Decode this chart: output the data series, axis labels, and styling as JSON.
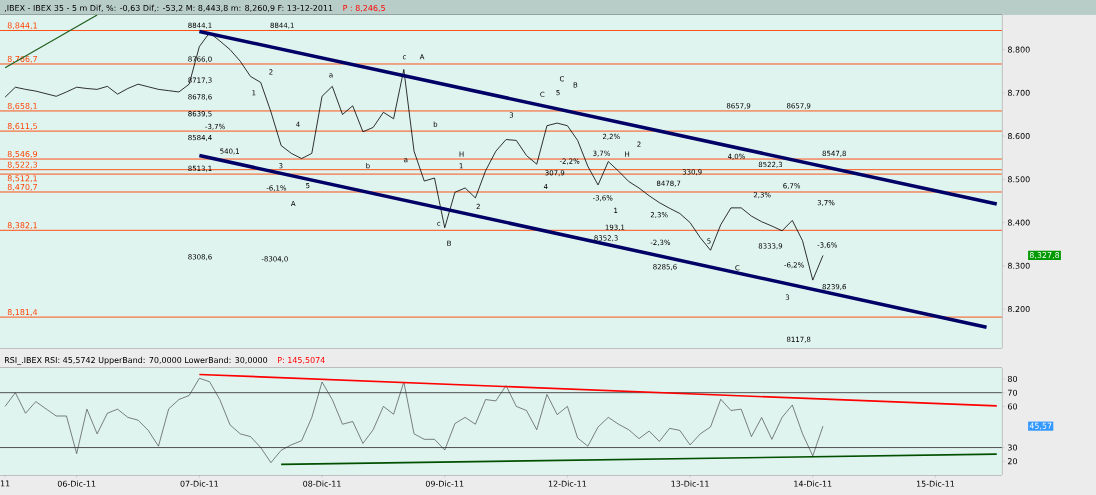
{
  "chart_data": [
    {
      "type": "line",
      "title": ",IBEX - IBEX 35 -  5 m Dif, %: -0,63 Dif,: -53,2 M: 8,443,8 m: 8,260,9 F: 13-12-2011",
      "subtitle": "P : 8,246,5",
      "categories": [
        null,
        null,
        null,
        null,
        null,
        null,
        null,
        null,
        null,
        null,
        null,
        null,
        null,
        null,
        null,
        null,
        null,
        null,
        null,
        null,
        null,
        null,
        null,
        null,
        null,
        null,
        null,
        null,
        null,
        null,
        null,
        null,
        null,
        null,
        null,
        null,
        null,
        null,
        null,
        null,
        null,
        null,
        null,
        null,
        null,
        null,
        null,
        null,
        null,
        null,
        null,
        null,
        null,
        null,
        null,
        null,
        null,
        null,
        null,
        null,
        null,
        null,
        null,
        null,
        null,
        null,
        null,
        null,
        null,
        null,
        null,
        null,
        null,
        null,
        null,
        null,
        null,
        null,
        null,
        null,
        null,
        null,
        null,
        null,
        null,
        null,
        null,
        null,
        null,
        null,
        null,
        null,
        null,
        null,
        null,
        null,
        null,
        null
      ],
      "ylim": [
        8110,
        8880
      ],
      "yticks": [
        {
          "value": 8200,
          "label": "8.200"
        },
        {
          "value": 8300,
          "label": "8.300"
        },
        {
          "value": 8400,
          "label": "8.400"
        },
        {
          "value": 8500,
          "label": "8.500"
        },
        {
          "value": 8600,
          "label": "8.600"
        },
        {
          "value": 8700,
          "label": "8.700"
        },
        {
          "value": 8800,
          "label": "8.800"
        }
      ],
      "tick_labels": "y",
      "series": [
        {
          "color": "#000000",
          "values": [
            8690,
            8713,
            8708,
            8704,
            8698,
            8692,
            8702,
            8713,
            8710,
            8708,
            8715,
            8697,
            8710,
            8720,
            8714,
            8708,
            8705,
            8702,
            8720,
            8807,
            8839,
            8820,
            8800,
            8773,
            8738,
            8724,
            8656,
            8578,
            8560,
            8548,
            8560,
            8692,
            8715,
            8650,
            8670,
            8610,
            8620,
            8655,
            8640,
            8754,
            8565,
            8496,
            8503,
            8388,
            8470,
            8480,
            8457,
            8520,
            8565,
            8592,
            8590,
            8555,
            8535,
            8624,
            8630,
            8624,
            8590,
            8530,
            8487,
            8541,
            8519,
            8495,
            8480,
            8462,
            8446,
            8433,
            8421,
            8400,
            8365,
            8336,
            8395,
            8434,
            8434,
            8415,
            8402,
            8392,
            8381,
            8405,
            8358,
            8267,
            8324,
            null,
            null,
            null,
            null,
            null,
            null,
            null,
            null,
            null,
            null,
            null,
            null,
            null,
            null,
            null,
            null,
            null
          ]
        },
        {
          "color": "#000066",
          "values": [
            null,
            null,
            null,
            null,
            null,
            null,
            null,
            null,
            null,
            null,
            null,
            null,
            null,
            null,
            null,
            null,
            null,
            null,
            null,
            8842,
            null,
            null,
            null,
            null,
            null,
            null,
            null,
            null,
            null,
            null,
            null,
            null,
            null,
            null,
            null,
            null,
            null,
            null,
            null,
            null,
            null,
            null,
            null,
            null,
            null,
            null,
            null,
            null,
            null,
            null,
            null,
            null,
            null,
            null,
            null,
            null,
            null,
            null,
            null,
            null,
            null,
            null,
            null,
            null,
            null,
            null,
            null,
            null,
            null,
            null,
            null,
            null,
            null,
            null,
            null,
            null,
            null,
            null,
            null,
            null,
            null,
            null,
            null,
            null,
            null,
            null,
            null,
            null,
            null,
            null,
            null,
            null,
            null,
            null,
            null,
            null,
            null,
            8443
          ]
        },
        {
          "color": "#000066",
          "values": [
            null,
            null,
            null,
            null,
            null,
            null,
            null,
            null,
            null,
            null,
            null,
            null,
            null,
            null,
            null,
            null,
            null,
            null,
            null,
            8555,
            null,
            null,
            null,
            null,
            null,
            null,
            null,
            null,
            null,
            null,
            null,
            null,
            null,
            null,
            null,
            null,
            null,
            null,
            null,
            null,
            null,
            null,
            null,
            null,
            null,
            null,
            null,
            null,
            null,
            null,
            null,
            null,
            null,
            null,
            null,
            null,
            null,
            null,
            null,
            null,
            null,
            null,
            null,
            null,
            null,
            null,
            null,
            null,
            null,
            null,
            null,
            null,
            null,
            null,
            null,
            null,
            null,
            null,
            null,
            null,
            null,
            null,
            null,
            null,
            null,
            null,
            null,
            null,
            null,
            null,
            null,
            null,
            null,
            null,
            null,
            null,
            8158,
            null
          ]
        },
        {
          "color": "#206020",
          "values": [
            8758,
            null,
            null,
            null,
            null,
            null,
            null,
            null,
            null,
            8880,
            null,
            null,
            null,
            null,
            null,
            null,
            null,
            null,
            null,
            null,
            null,
            null,
            null,
            null,
            null,
            null,
            null,
            null,
            null,
            null,
            null,
            null,
            null,
            null,
            null,
            null,
            null,
            null,
            null,
            null,
            null,
            null,
            null,
            null,
            null,
            null,
            null,
            null,
            null,
            null,
            null,
            null,
            null,
            null,
            null,
            null,
            null,
            null,
            null,
            null,
            null,
            null,
            null,
            null,
            null,
            null,
            null,
            null,
            null,
            null,
            null,
            null,
            null,
            null,
            null,
            null,
            null,
            null,
            null,
            null,
            null,
            null,
            null,
            null,
            null,
            null,
            null,
            null,
            null,
            null,
            null,
            null,
            null,
            null,
            null,
            null,
            null,
            null
          ]
        }
      ],
      "ref_lines": [
        {
          "axis": "y",
          "value": 8844.1,
          "label": "8,844,1",
          "color": "#ff4000"
        },
        {
          "axis": "y",
          "value": 8766.7,
          "label": "8,766,7",
          "color": "#ff4000"
        },
        {
          "axis": "y",
          "value": 8658.1,
          "label": "8,658,1",
          "color": "#ff4000"
        },
        {
          "axis": "y",
          "value": 8611.5,
          "label": "8,611,5",
          "color": "#ff4000"
        },
        {
          "axis": "y",
          "value": 8546.9,
          "label": "8,546,9",
          "color": "#ff4000"
        },
        {
          "axis": "y",
          "value": 8522.3,
          "label": "8,522,3",
          "color": "#ff4000"
        },
        {
          "axis": "y",
          "value": 8512.1,
          "label": "8,512,1",
          "color": "#ff4000"
        },
        {
          "axis": "y",
          "value": 8470.7,
          "label": "8,470,7",
          "color": "#ff4000"
        },
        {
          "axis": "y",
          "value": 8382.1,
          "label": "8,382,1",
          "color": "#ff4000"
        },
        {
          "axis": "y",
          "value": 8181.4,
          "label": "8,181,4",
          "color": "#ff4000"
        }
      ],
      "annotations": [
        "8844,1",
        "8766,0",
        "8717,3",
        "8678,6",
        "8639,5",
        "8584,4",
        "8513,1",
        "8308,6",
        "8844,1",
        "-8304,0",
        "-3,7%",
        "540,1",
        "-6,1%",
        "1",
        "2",
        "3",
        "4",
        "5",
        "A",
        "a",
        "b",
        "a",
        "c",
        "A",
        "b",
        "c",
        "B",
        "H",
        "1",
        "2",
        "3",
        "4",
        "5",
        "C",
        "C",
        "B",
        "307,9",
        "-2,2%",
        "H",
        "2",
        "2,2%",
        "3,7%",
        "1",
        "-3,6%",
        "193,1",
        "8352,3",
        "8478,7",
        "330,9",
        "2,3%",
        "-2,3%",
        "8285,6",
        "5",
        "C",
        "8657,9",
        "8657,9",
        "4,0%",
        "8522,3",
        "2,3%",
        "6,7%",
        "8333,9",
        "-6,2%",
        "3",
        "8117,8",
        "8547,8",
        "3,7%",
        "-3,6%",
        "8239,6",
        "8,327,8"
      ]
    },
    {
      "type": "line",
      "title": "RSI_.IBEX RSI: 45,5742 UpperBand: 70,0000 LowerBand: 30,0000",
      "subtitle": "P: 145,5074",
      "categories": [
        "11",
        null,
        null,
        null,
        null,
        null,
        null,
        "06-Dic-11",
        null,
        null,
        null,
        null,
        null,
        null,
        null,
        null,
        null,
        null,
        null,
        "07-Dic-11",
        null,
        null,
        null,
        null,
        null,
        null,
        null,
        null,
        null,
        null,
        null,
        "08-Dic-11",
        null,
        null,
        null,
        null,
        null,
        null,
        null,
        null,
        null,
        null,
        null,
        "09-Dic-11",
        null,
        null,
        null,
        null,
        null,
        null,
        null,
        null,
        null,
        null,
        null,
        "12-Dic-11",
        null,
        null,
        null,
        null,
        null,
        null,
        null,
        null,
        null,
        null,
        null,
        "13-Dic-11",
        null,
        null,
        null,
        null,
        null,
        null,
        null,
        null,
        null,
        null,
        null,
        "14-Dic-11",
        null,
        null,
        null,
        null,
        null,
        null,
        null,
        null,
        null,
        null,
        null,
        "15-Dic-11",
        null,
        null,
        null,
        null,
        null,
        null
      ],
      "ylim": [
        10,
        88
      ],
      "yticks": [
        20,
        30,
        60,
        70,
        80
      ],
      "series": [
        {
          "color": "#303030",
          "values": [
            60,
            70,
            55,
            63.5,
            58.2,
            53,
            53,
            25.6,
            58,
            40,
            55,
            58,
            52,
            50,
            42.5,
            31,
            58.2,
            65,
            68,
            80.5,
            78,
            65,
            46.5,
            40,
            38,
            30,
            19,
            28,
            32,
            35,
            52,
            77.8,
            65,
            47,
            49,
            33,
            43,
            60,
            54.3,
            77.8,
            40,
            36,
            36,
            28.2,
            47.5,
            52,
            47,
            65,
            64,
            75.2,
            60,
            57,
            43,
            68.7,
            54,
            60,
            37,
            31,
            45,
            52,
            47,
            43,
            36.5,
            42,
            34.5,
            44,
            42.5,
            31.9,
            40,
            45,
            65.2,
            57,
            58,
            38,
            51.9,
            36,
            52,
            61,
            40,
            23.9,
            45.6,
            null,
            null,
            null,
            null,
            null,
            null,
            null,
            null,
            null,
            null,
            null,
            null,
            null,
            null,
            null,
            null,
            null
          ]
        },
        {
          "color": "#ff0000",
          "values": [
            null,
            null,
            null,
            null,
            null,
            null,
            null,
            null,
            null,
            null,
            null,
            null,
            null,
            null,
            null,
            null,
            null,
            null,
            null,
            83.3,
            null,
            null,
            null,
            null,
            null,
            null,
            null,
            null,
            null,
            null,
            null,
            null,
            null,
            null,
            null,
            null,
            null,
            null,
            null,
            null,
            null,
            null,
            null,
            null,
            null,
            null,
            null,
            null,
            null,
            null,
            null,
            null,
            null,
            null,
            null,
            null,
            null,
            null,
            null,
            null,
            null,
            null,
            null,
            null,
            null,
            null,
            null,
            null,
            null,
            null,
            null,
            null,
            null,
            null,
            null,
            null,
            null,
            null,
            null,
            null,
            null,
            null,
            null,
            null,
            null,
            null,
            null,
            null,
            null,
            null,
            null,
            null,
            null,
            null,
            null,
            null,
            null,
            60.4
          ]
        },
        {
          "color": "#005000",
          "values": [
            null,
            null,
            null,
            null,
            null,
            null,
            null,
            null,
            null,
            null,
            null,
            null,
            null,
            null,
            null,
            null,
            null,
            null,
            null,
            null,
            null,
            null,
            null,
            null,
            null,
            null,
            null,
            17.7,
            null,
            null,
            null,
            null,
            null,
            null,
            null,
            null,
            null,
            null,
            null,
            null,
            null,
            null,
            null,
            null,
            null,
            null,
            null,
            null,
            null,
            null,
            null,
            null,
            null,
            null,
            null,
            null,
            null,
            null,
            null,
            null,
            null,
            null,
            null,
            null,
            null,
            null,
            null,
            null,
            null,
            null,
            null,
            null,
            null,
            null,
            null,
            null,
            null,
            null,
            null,
            null,
            null,
            null,
            null,
            null,
            null,
            null,
            null,
            null,
            null,
            null,
            null,
            null,
            null,
            null,
            null,
            null,
            null,
            25.2
          ]
        }
      ],
      "ref_lines": [
        {
          "axis": "y",
          "value": 70,
          "color": "#404040"
        },
        {
          "axis": "y",
          "value": 30,
          "color": "#404040"
        }
      ],
      "annotations": [
        "45,57"
      ]
    }
  ]
}
